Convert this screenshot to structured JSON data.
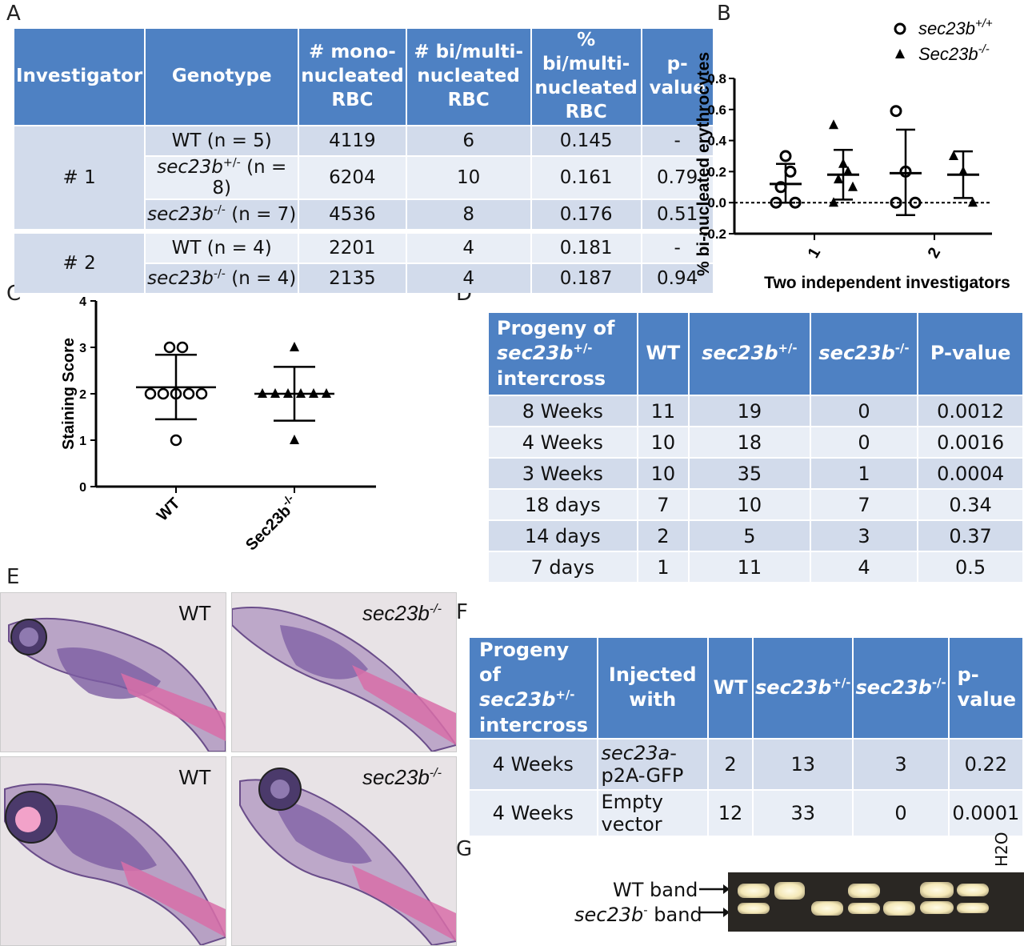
{
  "panels": {
    "A": "A",
    "B": "B",
    "C": "C",
    "D": "D",
    "E": "E",
    "F": "F",
    "G": "G"
  },
  "tableA": {
    "headers": [
      "Investigator",
      "Genotype",
      "# mono-nucleated RBC",
      "# bi/multi-nucleated RBC",
      "% bi/multi-nucleated RBC",
      "p-value"
    ],
    "groups": [
      {
        "investigator": "# 1",
        "rows": [
          {
            "genotype_base": "WT",
            "genotype_sup": "",
            "genotype_n": " (n = 5)",
            "mono": "4119",
            "bi": "6",
            "pct": "0.145",
            "p": "-"
          },
          {
            "genotype_base": "sec23b",
            "genotype_sup": "+/-",
            "genotype_n": " (n = 8)",
            "mono": "6204",
            "bi": "10",
            "pct": "0.161",
            "p": "0.79"
          },
          {
            "genotype_base": "sec23b",
            "genotype_sup": "-/-",
            "genotype_n": " (n = 7)",
            "mono": "4536",
            "bi": "8",
            "pct": "0.176",
            "p": "0.51"
          }
        ]
      },
      {
        "investigator": "# 2",
        "rows": [
          {
            "genotype_base": "WT",
            "genotype_sup": "",
            "genotype_n": " (n = 4)",
            "mono": "2201",
            "bi": "4",
            "pct": "0.181",
            "p": "-"
          },
          {
            "genotype_base": "sec23b",
            "genotype_sup": "-/-",
            "genotype_n": " (n = 4)",
            "mono": "2135",
            "bi": "4",
            "pct": "0.187",
            "p": "0.94"
          }
        ]
      }
    ]
  },
  "chart_data": [
    {
      "type": "scatter",
      "panel": "B",
      "ylabel": "% bi-nucleated erythrocytes",
      "xlabel": "Two independent investigators",
      "categories": [
        "1",
        "2"
      ],
      "ylim": [
        -0.2,
        0.8
      ],
      "yticks": [
        "-0.2",
        "0.0",
        "0.2",
        "0.4",
        "0.6",
        "0.8"
      ],
      "legend": [
        {
          "base": "sec23b",
          "sup": "+/+",
          "marker": "circle"
        },
        {
          "base": "Sec23b",
          "sup": "-/-",
          "marker": "triangle"
        }
      ],
      "series": [
        {
          "marker": "circle",
          "points": [
            [
              1,
              0.0
            ],
            [
              1,
              0.0
            ],
            [
              1,
              0.1
            ],
            [
              1,
              0.2
            ],
            [
              1,
              0.3
            ],
            [
              2,
              0.0
            ],
            [
              2,
              0.0
            ],
            [
              2,
              0.2
            ],
            [
              2,
              0.59
            ]
          ],
          "stats": [
            {
              "x": 1,
              "mean": 0.12,
              "sd_low": 0.0,
              "sd_high": 0.25
            },
            {
              "x": 2,
              "mean": 0.19,
              "sd_low": -0.08,
              "sd_high": 0.47
            }
          ]
        },
        {
          "marker": "triangle",
          "points": [
            [
              1,
              0.0
            ],
            [
              1,
              0.1
            ],
            [
              1,
              0.15
            ],
            [
              1,
              0.2
            ],
            [
              1,
              0.25
            ],
            [
              1,
              0.5
            ],
            [
              2,
              0.0
            ],
            [
              2,
              0.2
            ],
            [
              2,
              0.3
            ]
          ],
          "stats": [
            {
              "x": 1,
              "mean": 0.18,
              "sd_low": 0.02,
              "sd_high": 0.34
            },
            {
              "x": 2,
              "mean": 0.18,
              "sd_low": 0.03,
              "sd_high": 0.33
            }
          ]
        }
      ],
      "zero_line": "dashed"
    },
    {
      "type": "scatter",
      "panel": "C",
      "ylabel": "Staining Score",
      "categories": [
        "WT",
        "Sec23b-/-"
      ],
      "category_labels": [
        {
          "base": "WT",
          "sup": ""
        },
        {
          "base": "Sec23b",
          "sup": "-/-"
        }
      ],
      "ylim": [
        0,
        4
      ],
      "yticks": [
        "0",
        "1",
        "2",
        "3",
        "4"
      ],
      "series": [
        {
          "marker": "circle",
          "category": "WT",
          "values": [
            3,
            3,
            2,
            2,
            2,
            2,
            2,
            1
          ],
          "mean": 2.14,
          "sd_low": 1.45,
          "sd_high": 2.84
        },
        {
          "marker": "triangle",
          "category": "Sec23b-/-",
          "values": [
            3,
            2,
            2,
            2,
            2,
            2,
            2,
            1
          ],
          "mean": 2.0,
          "sd_low": 1.42,
          "sd_high": 2.58
        }
      ]
    }
  ],
  "tableD": {
    "header_progeny": [
      "Progeny of",
      "sec23b",
      "+/-",
      "intercross"
    ],
    "col_wt": "WT",
    "col_het": {
      "base": "sec23b",
      "sup": "+/-"
    },
    "col_ko": {
      "base": "sec23b",
      "sup": "-/-"
    },
    "col_p": "P-value",
    "rows": [
      {
        "age": "8 Weeks",
        "wt": "11",
        "het": "19",
        "ko": "0",
        "p": "0.0012"
      },
      {
        "age": "4 Weeks",
        "wt": "10",
        "het": "18",
        "ko": "0",
        "p": "0.0016"
      },
      {
        "age": "3 Weeks",
        "wt": "10",
        "het": "35",
        "ko": "1",
        "p": "0.0004"
      },
      {
        "age": "18 days",
        "wt": "7",
        "het": "10",
        "ko": "7",
        "p": "0.34"
      },
      {
        "age": "14 days",
        "wt": "2",
        "het": "5",
        "ko": "3",
        "p": "0.37"
      },
      {
        "age": "7 days",
        "wt": "1",
        "het": "11",
        "ko": "4",
        "p": "0.5"
      }
    ]
  },
  "histology": [
    {
      "label": "WT"
    },
    {
      "label_base": "sec23b",
      "label_sup": "-/-"
    },
    {
      "label": "WT"
    },
    {
      "label_base": "sec23b",
      "label_sup": "-/-"
    }
  ],
  "tableF": {
    "header_progeny": [
      "Progeny of",
      "sec23b",
      "+/-",
      "intercross"
    ],
    "col_inj": "Injected with",
    "col_wt": "WT",
    "col_het": {
      "base": "sec23b",
      "sup": "+/-"
    },
    "col_ko": {
      "base": "sec23b",
      "sup": "-/-"
    },
    "col_p": [
      "p-",
      "value"
    ],
    "rows": [
      {
        "age": "4 Weeks",
        "inj_it": "sec23a",
        "inj_rest": "-p2A-GFP",
        "wt": "2",
        "het": "13",
        "ko": "3",
        "p": "0.22"
      },
      {
        "age": "4 Weeks",
        "inj_it": "",
        "inj_rest": "Empty vector",
        "wt": "12",
        "het": "33",
        "ko": "0",
        "p": "0.0001"
      }
    ]
  },
  "gel": {
    "wt_band_label": "WT band",
    "mut_band_base": "sec23b",
    "mut_band_sup": "-",
    "mut_band_rest": " band",
    "lane_label": "H2O"
  }
}
